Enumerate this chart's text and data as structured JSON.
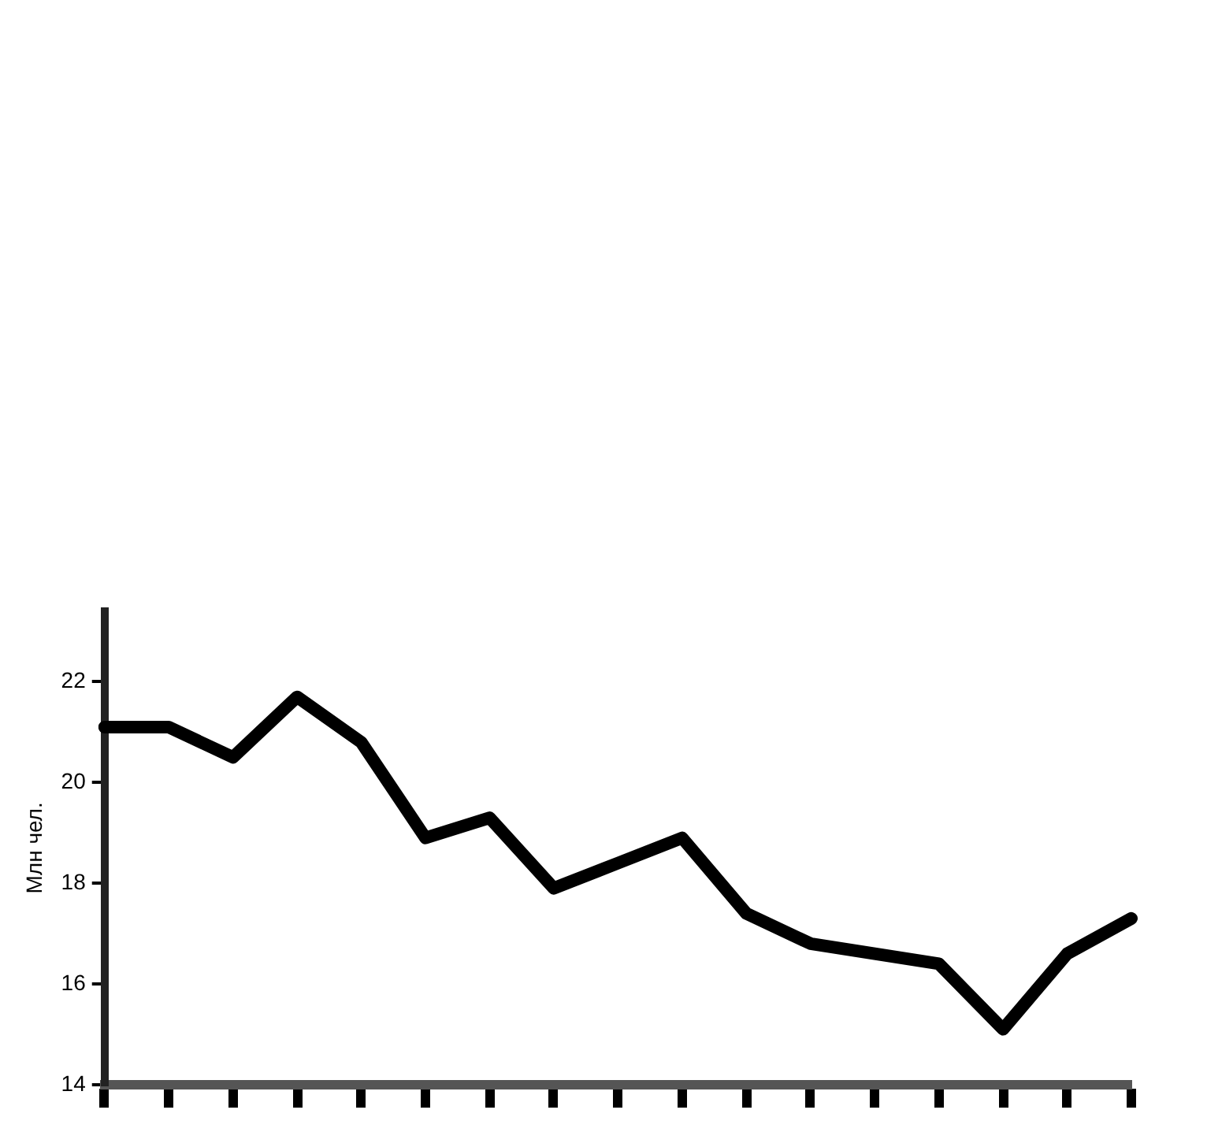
{
  "chart_data": {
    "type": "line",
    "ylabel": "Млн чел.",
    "categories": [
      null,
      null,
      null,
      null,
      null,
      null,
      null,
      null,
      null,
      null,
      null,
      null,
      null,
      null,
      null,
      null,
      null
    ],
    "series": [
      {
        "color": "#000000",
        "values": [
          21.1,
          21.1,
          20.5,
          21.7,
          20.8,
          18.9,
          19.3,
          17.9,
          18.4,
          18.9,
          17.4,
          16.8,
          16.6,
          16.4,
          15.1,
          16.6,
          17.3
        ]
      }
    ],
    "ylim": [
      14,
      23.4
    ],
    "yticks": [
      14,
      16,
      18,
      20,
      22
    ],
    "grid": false,
    "legend": false,
    "marker": "none",
    "line_style": "solid"
  }
}
